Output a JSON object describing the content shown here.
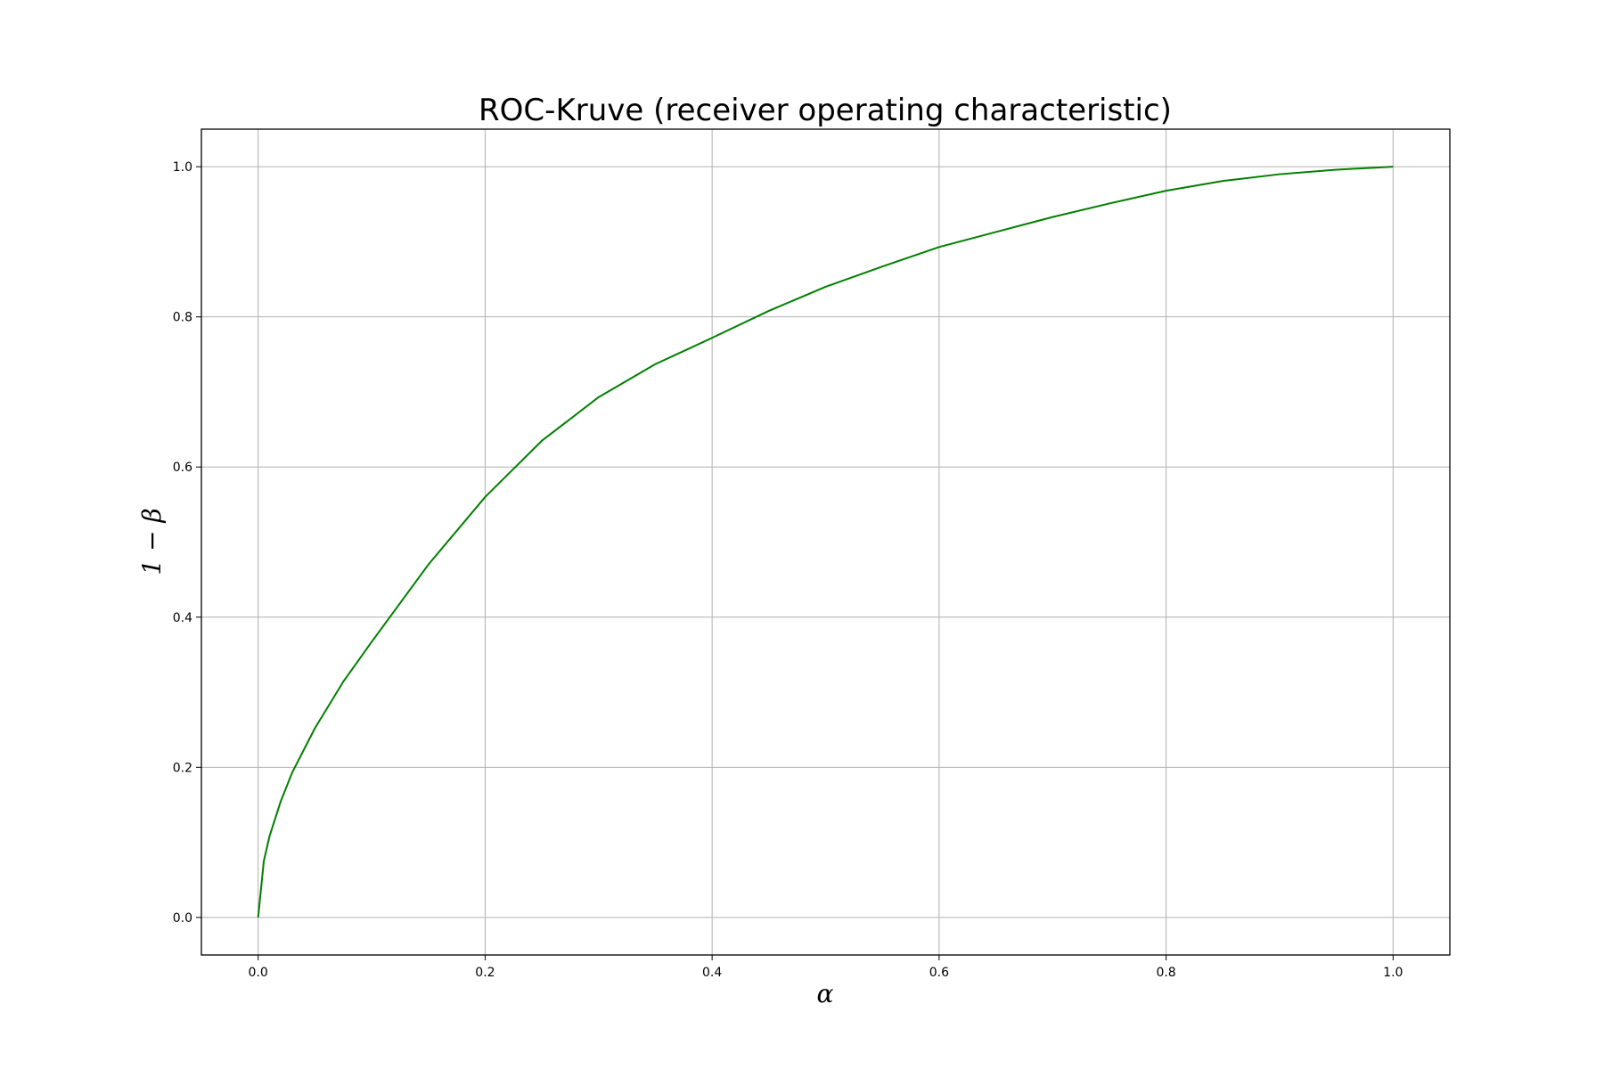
{
  "chart_data": {
    "type": "line",
    "title": "ROC-Kruve (receiver operating characteristic)",
    "xlabel": "α",
    "ylabel": "1 − β",
    "xlim": [
      -0.05,
      1.05
    ],
    "ylim": [
      -0.05,
      1.05
    ],
    "xticks": [
      "0.0",
      "0.2",
      "0.4",
      "0.6",
      "0.8",
      "1.0"
    ],
    "yticks": [
      "0.0",
      "0.2",
      "0.4",
      "0.6",
      "0.8",
      "1.0"
    ],
    "grid": true,
    "legend": "none",
    "series": [
      {
        "color": "#008000",
        "x": [
          0.0,
          0.005,
          0.01,
          0.02,
          0.03,
          0.05,
          0.075,
          0.1,
          0.15,
          0.2,
          0.25,
          0.3,
          0.35,
          0.4,
          0.45,
          0.5,
          0.55,
          0.6,
          0.65,
          0.7,
          0.75,
          0.8,
          0.85,
          0.9,
          0.95,
          1.0
        ],
        "y": [
          0.0,
          0.075,
          0.108,
          0.155,
          0.193,
          0.252,
          0.314,
          0.367,
          0.47,
          0.56,
          0.635,
          0.693,
          0.737,
          0.772,
          0.808,
          0.84,
          0.867,
          0.893,
          0.913,
          0.933,
          0.951,
          0.968,
          0.981,
          0.99,
          0.996,
          1.0
        ]
      }
    ]
  }
}
